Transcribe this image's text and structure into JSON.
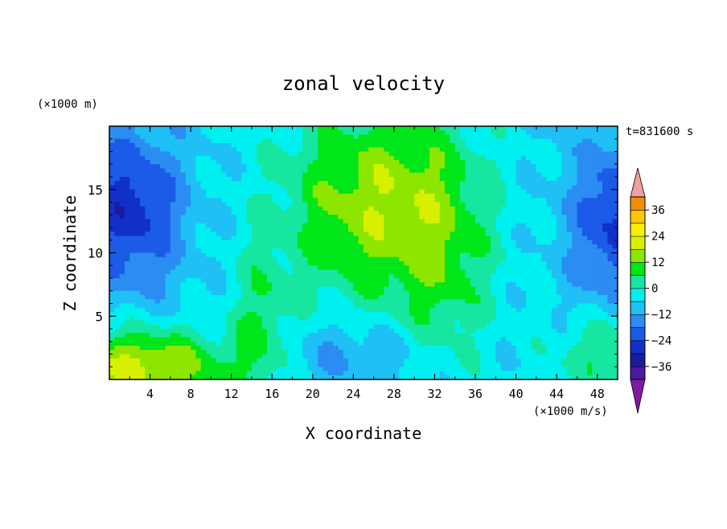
{
  "chart_data": {
    "type": "heatmap",
    "title": "zonal velocity",
    "xlabel": "X coordinate",
    "ylabel": "Z coordinate",
    "x_unit": "(×1000 m/s)",
    "y_unit": "(×1000 m)",
    "time_label": "t=831600 s",
    "xlim": [
      0,
      50
    ],
    "ylim": [
      0,
      20
    ],
    "x_ticks": [
      4,
      8,
      12,
      16,
      20,
      24,
      28,
      32,
      36,
      40,
      44,
      48
    ],
    "y_ticks": [
      5,
      10,
      15
    ],
    "colorbar": {
      "levels": [
        -42,
        -36,
        -30,
        -24,
        -18,
        -12,
        -6,
        0,
        6,
        12,
        18,
        24,
        30,
        36,
        42
      ],
      "tick_labels": [
        "36",
        "24",
        "12",
        "0",
        "−12",
        "−24",
        "−36"
      ],
      "colors": [
        "#7f1aa6",
        "#4b1a9e",
        "#1a1aa0",
        "#1030c8",
        "#1c5ae8",
        "#2b8cf2",
        "#1ec0f6",
        "#00f0f0",
        "#17e6a0",
        "#00e619",
        "#8ee600",
        "#d8f000",
        "#f8f000",
        "#f8c800",
        "#f09000",
        "#f06000",
        "#f03000",
        "#f0a0a0"
      ],
      "over_color": "#f0a0a0",
      "under_color": "#7f1aa6"
    },
    "grid": false,
    "legend": "right colorbar"
  }
}
